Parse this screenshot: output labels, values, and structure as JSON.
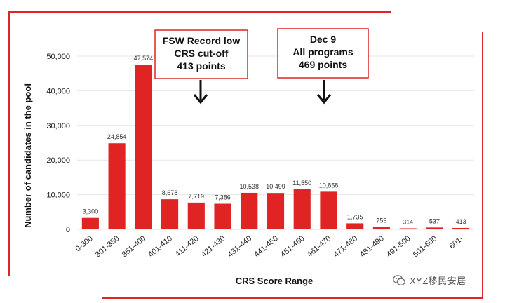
{
  "chart_data": {
    "type": "bar",
    "categories": [
      "0-300",
      "301-350",
      "351-400",
      "401-410",
      "411-420",
      "421-430",
      "431-440",
      "441-450",
      "451-460",
      "461-470",
      "471-480",
      "481-490",
      "491-500",
      "501-600",
      "601-"
    ],
    "values": [
      3300,
      24854,
      47574,
      8678,
      7719,
      7386,
      10538,
      10499,
      11550,
      10858,
      1735,
      759,
      314,
      537,
      413
    ],
    "value_labels": [
      "3,300",
      "24,854",
      "47,574",
      "8,678",
      "7,719",
      "7,386",
      "10,538",
      "10,499",
      "11,550",
      "10,858",
      "1,735",
      "759",
      "314",
      "537",
      "413"
    ],
    "xlabel": "CRS Score Range",
    "ylabel": "Number of candidates in the pool",
    "ylim": [
      0,
      50000
    ],
    "yticks": [
      0,
      10000,
      20000,
      30000,
      40000,
      50000
    ],
    "ytick_labels": [
      "0",
      "10,000",
      "20,000",
      "30,000",
      "40,000",
      "50,000"
    ],
    "grid": true,
    "bar_color": "#e02424",
    "annotations": [
      {
        "lines": [
          "FSW Record low",
          "CRS cut-off",
          "413 points"
        ],
        "category_index": 4
      },
      {
        "lines": [
          "Dec 9",
          "All programs",
          "469 points"
        ],
        "category_index": 9
      }
    ]
  },
  "watermark": {
    "text": "XYZ移民安居",
    "icon": "wechat-icon"
  },
  "colors": {
    "accent": "#e02424",
    "grid": "#e6e6e6"
  }
}
